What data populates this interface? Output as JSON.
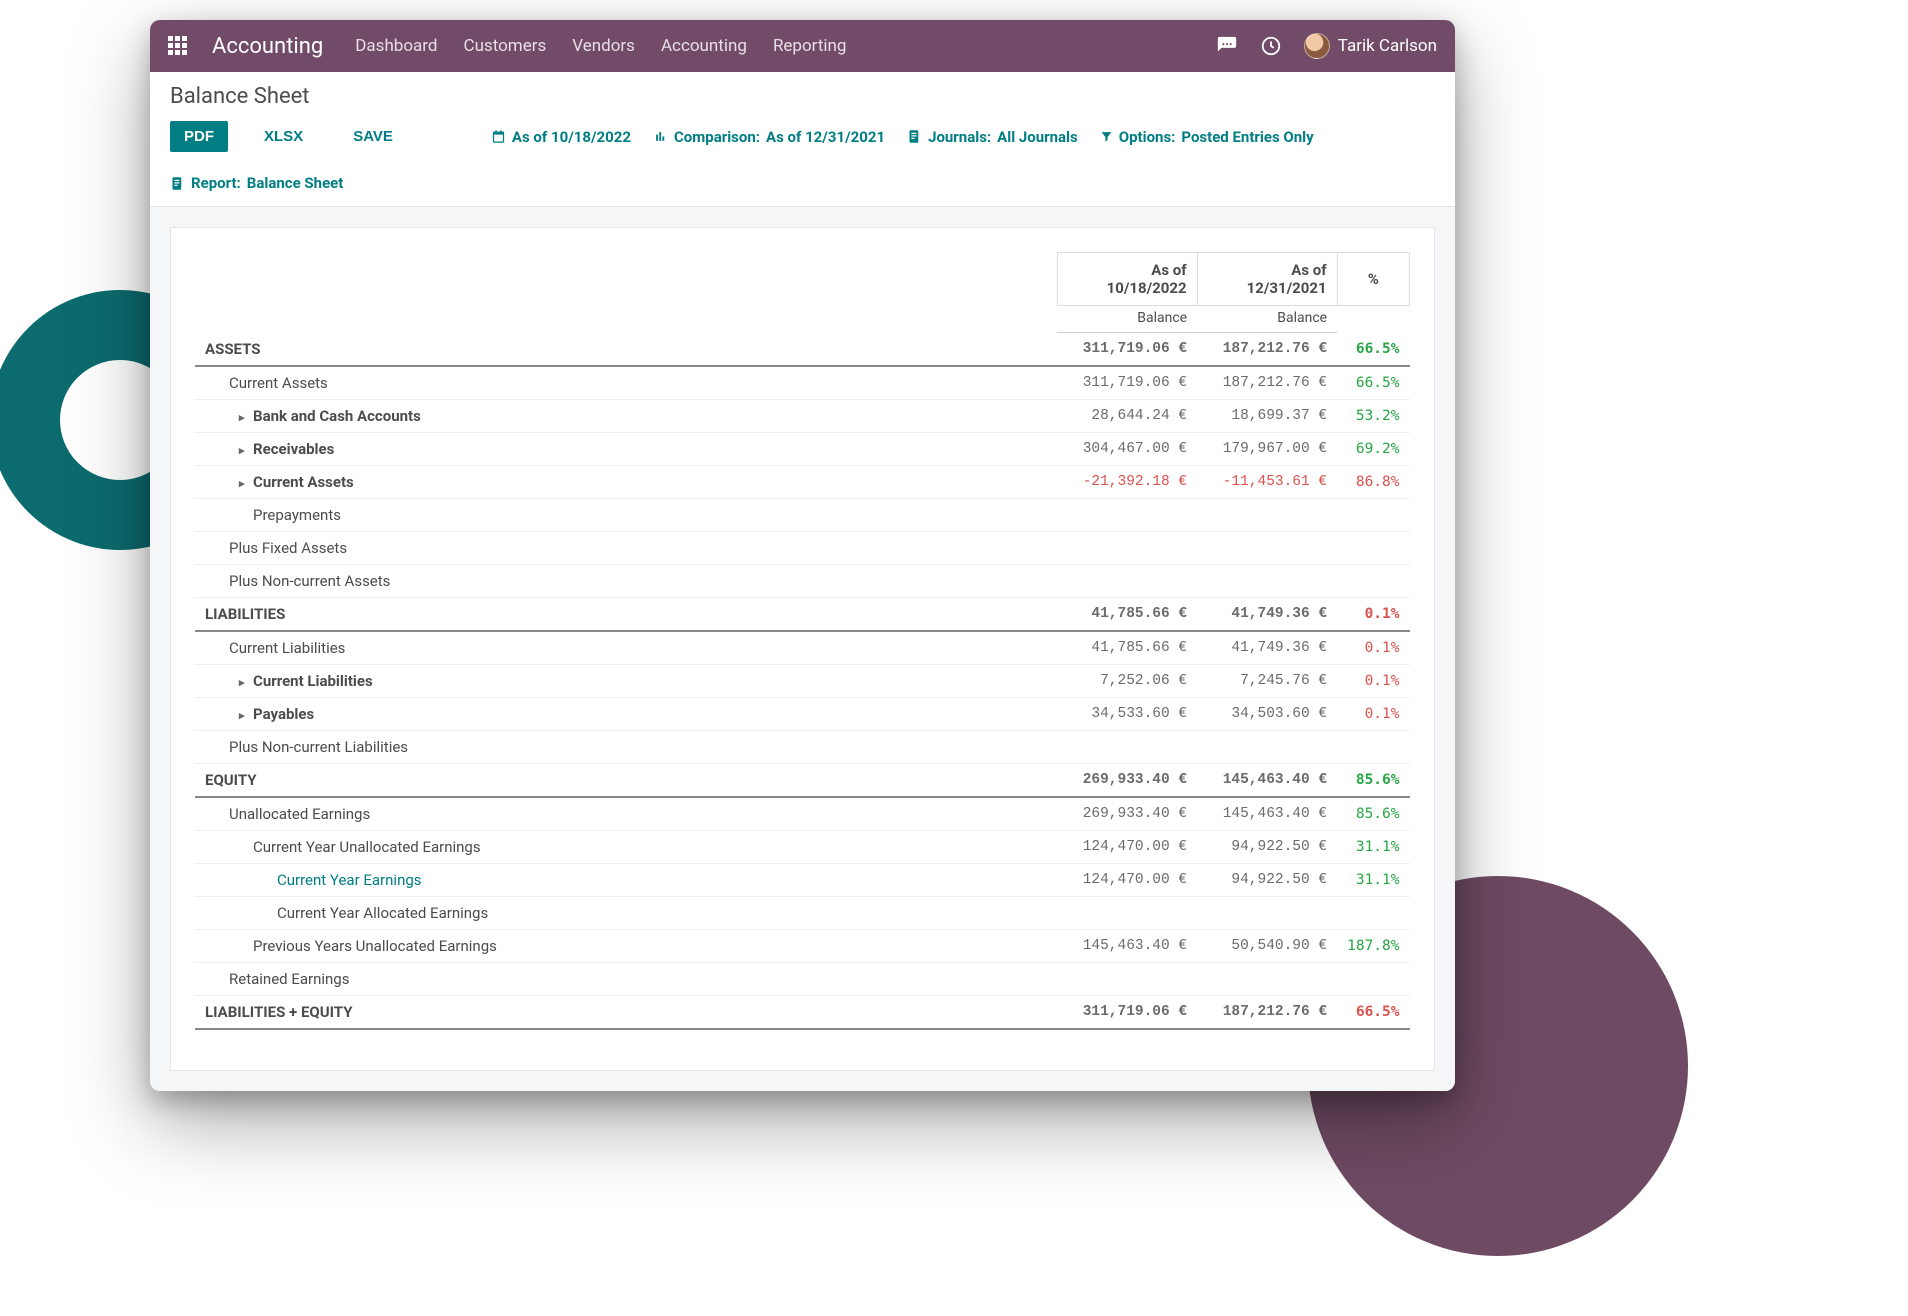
{
  "colors": {
    "topnav_bg": "#714b67",
    "accent": "#017e84",
    "ring": "#0c6b6e",
    "circle": "#6f4b63",
    "positive": "#28a745",
    "negative": "#d9534f",
    "panel_bg": "#f5f6f7",
    "border": "#e5e5e5"
  },
  "topnav": {
    "app": "Accounting",
    "links": [
      "Dashboard",
      "Customers",
      "Vendors",
      "Accounting",
      "Reporting"
    ],
    "user": "Tarik Carlson"
  },
  "page": {
    "title": "Balance Sheet"
  },
  "actions": {
    "pdf": "PDF",
    "xlsx": "XLSX",
    "save": "SAVE"
  },
  "filters": {
    "asof_label": "As of 10/18/2022",
    "comparison_key": "Comparison:",
    "comparison_val": "As of 12/31/2021",
    "journals_key": "Journals:",
    "journals_val": " All Journals",
    "options_key": "Options:",
    "options_val": "Posted Entries Only",
    "report_key": "Report:",
    "report_val": " Balance Sheet"
  },
  "table": {
    "type": "report-table",
    "col1_header": "As of\n10/18/2022",
    "col2_header": "As of\n12/31/2021",
    "pct_header": "%",
    "balance_label": "Balance",
    "rows": [
      {
        "label": "ASSETS",
        "indent": 0,
        "section": true,
        "caret": false,
        "col1": "311,719.06 €",
        "col2": "187,212.76 €",
        "pct": "66.5%",
        "pct_color": "green"
      },
      {
        "label": "Current Assets",
        "indent": 1,
        "caret": false,
        "col1": "311,719.06 €",
        "col2": "187,212.76 €",
        "pct": "66.5%",
        "pct_color": "green"
      },
      {
        "label": "Bank and Cash Accounts",
        "indent": 2,
        "bold": true,
        "caret": true,
        "col1": "28,644.24 €",
        "col2": "18,699.37 €",
        "pct": "53.2%",
        "pct_color": "green"
      },
      {
        "label": "Receivables",
        "indent": 2,
        "bold": true,
        "caret": true,
        "col1": "304,467.00 €",
        "col2": "179,967.00 €",
        "pct": "69.2%",
        "pct_color": "green"
      },
      {
        "label": "Current Assets",
        "indent": 2,
        "bold": true,
        "caret": true,
        "col1": "-21,392.18 €",
        "col2": "-11,453.61 €",
        "neg": true,
        "pct": "86.8%",
        "pct_color": "red"
      },
      {
        "label": "Prepayments",
        "indent": 2,
        "caret": false
      },
      {
        "label": "Plus Fixed Assets",
        "indent": 1,
        "caret": false
      },
      {
        "label": "Plus Non-current Assets",
        "indent": 1,
        "caret": false
      },
      {
        "label": "LIABILITIES",
        "indent": 0,
        "section": true,
        "caret": false,
        "col1": "41,785.66 €",
        "col2": "41,749.36 €",
        "pct": "0.1%",
        "pct_color": "red"
      },
      {
        "label": "Current Liabilities",
        "indent": 1,
        "caret": false,
        "col1": "41,785.66 €",
        "col2": "41,749.36 €",
        "pct": "0.1%",
        "pct_color": "red"
      },
      {
        "label": "Current Liabilities",
        "indent": 2,
        "bold": true,
        "caret": true,
        "col1": "7,252.06 €",
        "col2": "7,245.76 €",
        "pct": "0.1%",
        "pct_color": "red"
      },
      {
        "label": "Payables",
        "indent": 2,
        "bold": true,
        "caret": true,
        "col1": "34,533.60 €",
        "col2": "34,503.60 €",
        "pct": "0.1%",
        "pct_color": "red"
      },
      {
        "label": "Plus Non-current Liabilities",
        "indent": 1,
        "caret": false
      },
      {
        "label": "EQUITY",
        "indent": 0,
        "section": true,
        "caret": false,
        "col1": "269,933.40 €",
        "col2": "145,463.40 €",
        "pct": "85.6%",
        "pct_color": "green"
      },
      {
        "label": "Unallocated Earnings",
        "indent": 1,
        "caret": false,
        "col1": "269,933.40 €",
        "col2": "145,463.40 €",
        "pct": "85.6%",
        "pct_color": "green"
      },
      {
        "label": "Current Year Unallocated Earnings",
        "indent": 2,
        "caret": false,
        "col1": "124,470.00 €",
        "col2": "94,922.50 €",
        "pct": "31.1%",
        "pct_color": "green"
      },
      {
        "label": "Current Year Earnings",
        "indent": 3,
        "link": true,
        "caret": false,
        "col1": "124,470.00 €",
        "col2": "94,922.50 €",
        "pct": "31.1%",
        "pct_color": "green"
      },
      {
        "label": "Current Year Allocated Earnings",
        "indent": 3,
        "caret": false
      },
      {
        "label": "Previous Years Unallocated Earnings",
        "indent": 2,
        "caret": false,
        "col1": "145,463.40 €",
        "col2": "50,540.90 €",
        "pct": "187.8%",
        "pct_color": "green"
      },
      {
        "label": "Retained Earnings",
        "indent": 1,
        "caret": false
      },
      {
        "label": "LIABILITIES + EQUITY",
        "indent": 0,
        "section": true,
        "caret": false,
        "col1": "311,719.06 €",
        "col2": "187,212.76 €",
        "pct": "66.5%",
        "pct_color": "red"
      }
    ]
  }
}
